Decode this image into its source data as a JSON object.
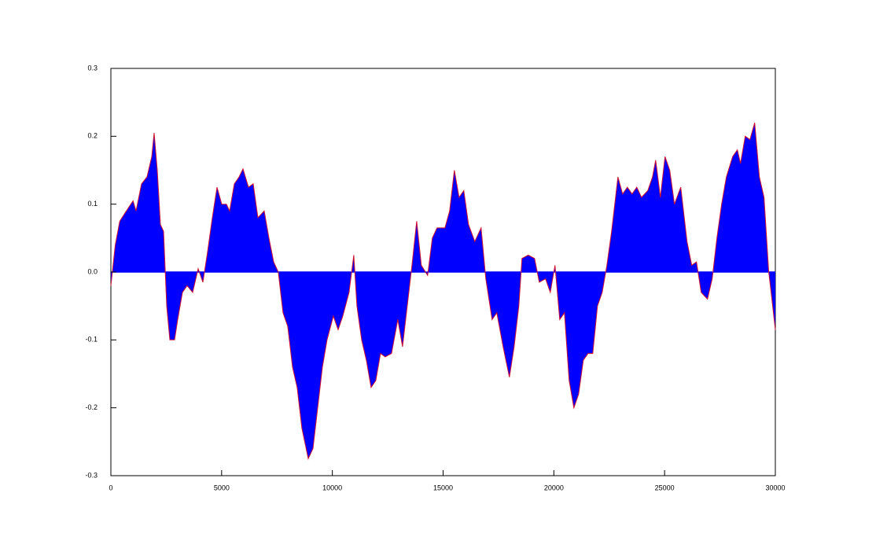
{
  "chart_data": {
    "type": "area",
    "x": [
      0,
      200,
      400,
      700,
      1000,
      1136,
      1385,
      1630,
      1846,
      1953,
      2095,
      2236,
      2378,
      2520,
      2662,
      2875,
      3018,
      3230,
      3443,
      3692,
      3940,
      4153,
      4366,
      4580,
      4792,
      5005,
      5218,
      5360,
      5573,
      5786,
      5964,
      6212,
      6425,
      6638,
      6922,
      7135,
      7348,
      7560,
      7773,
      7986,
      8200,
      8412,
      8625,
      8910,
      9123,
      9336,
      9550,
      9760,
      10045,
      10260,
      10470,
      10755,
      10968,
      11110,
      11322,
      11535,
      11747,
      11960,
      12173,
      12386,
      12670,
      12955,
      13168,
      13380,
      13593,
      13806,
      14018,
      14302,
      14515,
      14728,
      15083,
      15296,
      15509,
      15722,
      15935,
      16148,
      16432,
      16716,
      16929,
      17213,
      17426,
      17710,
      17994,
      18207,
      18420,
      18560,
      18845,
      19130,
      19342,
      19626,
      19840,
      20053,
      20266,
      20479,
      20692,
      20905,
      21117,
      21330,
      21543,
      21756,
      21970,
      22182,
      22395,
      22608,
      22892,
      23105,
      23318,
      23530,
      23743,
      23956,
      24240,
      24453,
      24595,
      24808,
      25020,
      25233,
      25446,
      25730,
      26014,
      26227,
      26440,
      26652,
      26936,
      27150,
      27362,
      27575,
      27788,
      28072,
      28285,
      28426,
      28640,
      28852,
      29065,
      29278,
      29490,
      29703,
      29845,
      30000
    ],
    "values": [
      -0.02,
      0.04,
      0.075,
      0.09,
      0.105,
      0.09,
      0.13,
      0.14,
      0.17,
      0.205,
      0.15,
      0.07,
      0.06,
      -0.05,
      -0.1,
      -0.1,
      -0.07,
      -0.03,
      -0.02,
      -0.03,
      0.005,
      -0.015,
      0.03,
      0.08,
      0.125,
      0.1,
      0.1,
      0.09,
      0.13,
      0.14,
      0.152,
      0.125,
      0.13,
      0.08,
      0.09,
      0.05,
      0.015,
      0,
      -0.06,
      -0.08,
      -0.14,
      -0.17,
      -0.23,
      -0.275,
      -0.26,
      -0.2,
      -0.14,
      -0.1,
      -0.065,
      -0.085,
      -0.065,
      -0.03,
      0.025,
      -0.05,
      -0.1,
      -0.13,
      -0.17,
      -0.16,
      -0.12,
      -0.125,
      -0.12,
      -0.07,
      -0.11,
      -0.05,
      0.01,
      0.075,
      0.01,
      -0.005,
      0.05,
      0.065,
      0.065,
      0.09,
      0.15,
      0.11,
      0.12,
      0.07,
      0.045,
      0.065,
      -0.01,
      -0.07,
      -0.06,
      -0.11,
      -0.155,
      -0.11,
      -0.05,
      0.02,
      0.025,
      0.02,
      -0.015,
      -0.01,
      -0.03,
      0.01,
      -0.07,
      -0.06,
      -0.16,
      -0.2,
      -0.18,
      -0.13,
      -0.12,
      -0.12,
      -0.05,
      -0.03,
      0.01,
      0.06,
      0.14,
      0.115,
      0.125,
      0.115,
      0.125,
      0.11,
      0.12,
      0.14,
      0.165,
      0.11,
      0.17,
      0.15,
      0.1,
      0.125,
      0.045,
      0.01,
      0.015,
      -0.03,
      -0.04,
      -0.01,
      0.05,
      0.1,
      0.14,
      0.17,
      0.18,
      0.16,
      0.2,
      0.195,
      0.22,
      0.14,
      0.11,
      0,
      -0.04,
      -0.085
    ],
    "color": "#0000ff",
    "line_color": "#d01030",
    "xlim": [
      0,
      30000
    ],
    "xticks": [
      0,
      5000,
      10000,
      15000,
      20000,
      25000,
      30000
    ],
    "ylim": [
      -0.3,
      0.3
    ],
    "yticks": [
      -0.3,
      -0.2,
      -0.1,
      {
        "value": 0,
        "label": "0.0"
      },
      0.1,
      0.2,
      0.3
    ]
  }
}
